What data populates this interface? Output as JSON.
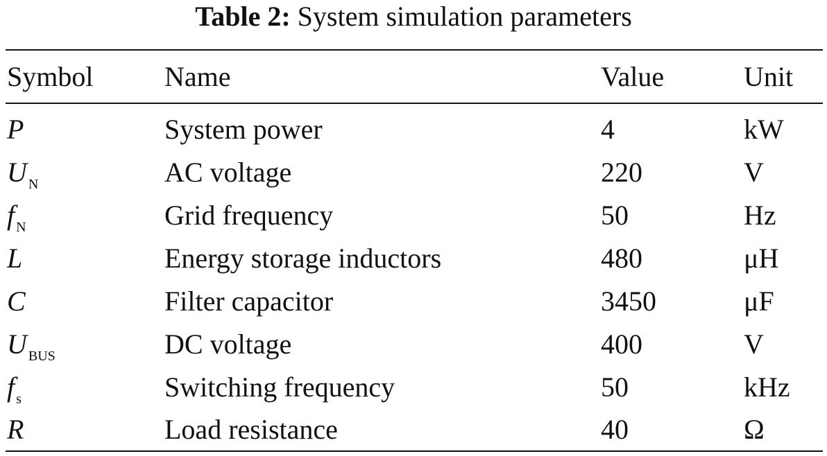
{
  "table": {
    "caption_label": "Table 2:",
    "caption_title": "System simulation parameters",
    "headers": {
      "symbol": "Symbol",
      "name": "Name",
      "value": "Value",
      "unit": "Unit"
    },
    "rows": [
      {
        "symbol": "P",
        "sub": "",
        "name": "System power",
        "value": "4",
        "unit": "kW"
      },
      {
        "symbol": "U",
        "sub": "N",
        "name": "AC voltage",
        "value": "220",
        "unit": "V"
      },
      {
        "symbol": "f",
        "sub": "N",
        "name": "Grid frequency",
        "value": "50",
        "unit": "Hz"
      },
      {
        "symbol": "L",
        "sub": "",
        "name": "Energy storage inductors",
        "value": "480",
        "unit": "μH"
      },
      {
        "symbol": "C",
        "sub": "",
        "name": "Filter capacitor",
        "value": "3450",
        "unit": "μF"
      },
      {
        "symbol": "U",
        "sub": "BUS",
        "name": "DC voltage",
        "value": "400",
        "unit": "V"
      },
      {
        "symbol": "f",
        "sub": "s",
        "name": "Switching frequency",
        "value": "50",
        "unit": "kHz"
      },
      {
        "symbol": "R",
        "sub": "",
        "name": "Load resistance",
        "value": "40",
        "unit": "Ω"
      }
    ]
  }
}
